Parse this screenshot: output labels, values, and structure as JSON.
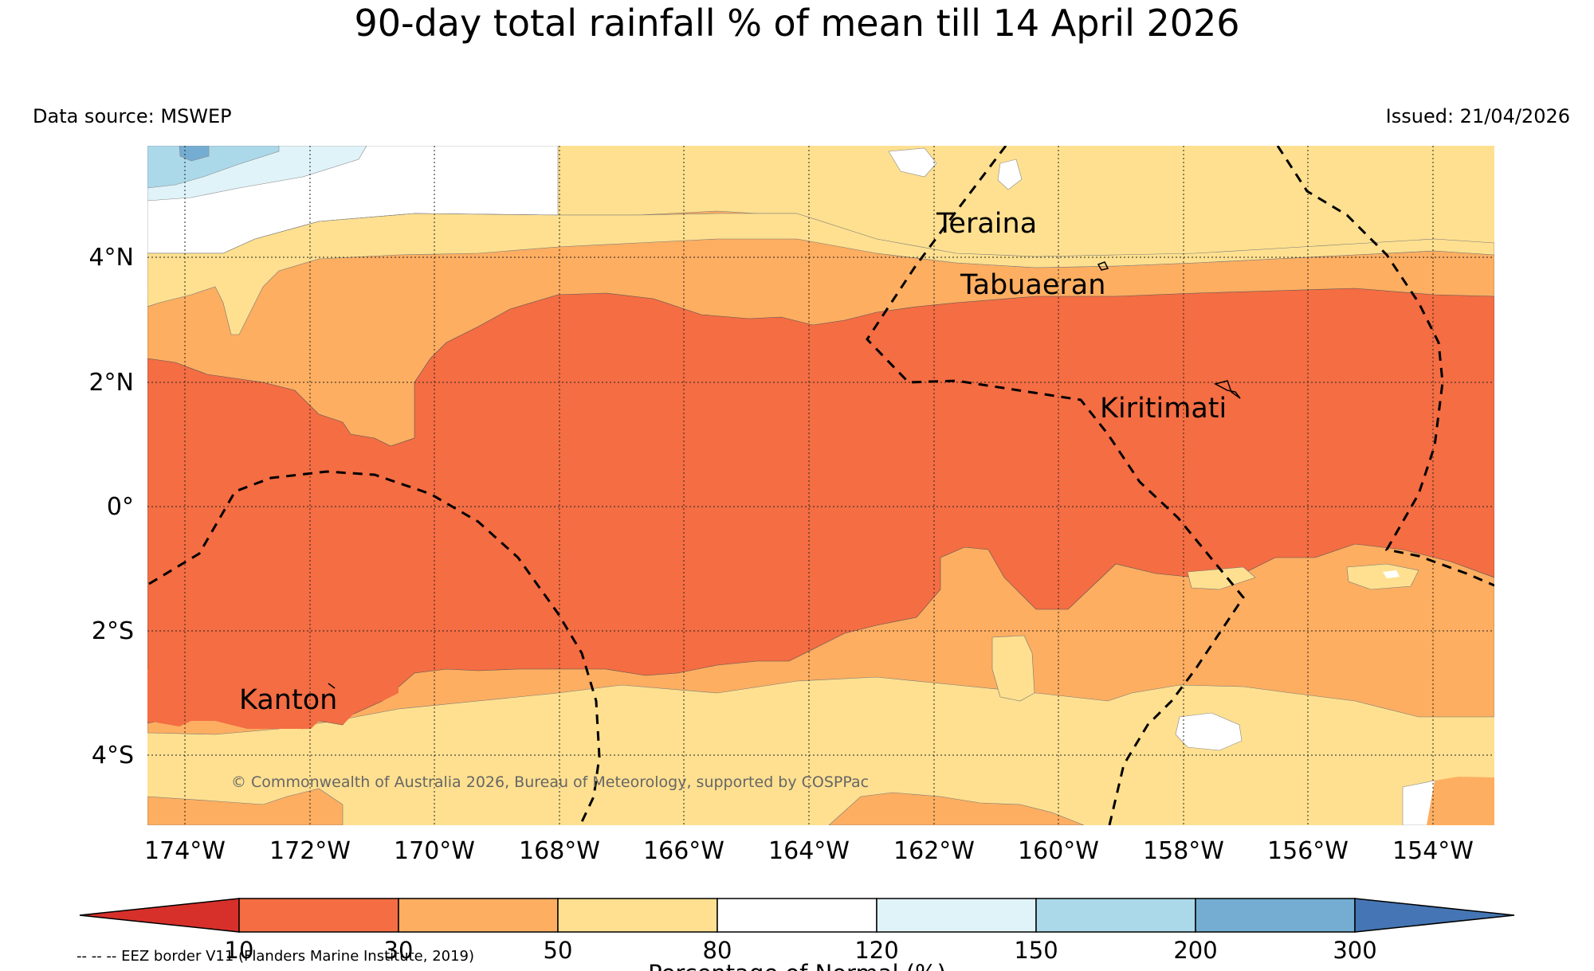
{
  "title": "90-day total rainfall % of mean till 14 April 2026",
  "data_source": "Data source: MSWEP",
  "issued": "Issued: 21/04/2026",
  "longitude_labels": [
    "174°W",
    "172°W",
    "170°W",
    "168°W",
    "166°W",
    "164°W",
    "162°W",
    "160°W",
    "158°W",
    "156°W",
    "154°W"
  ],
  "latitude_labels": [
    "4°N",
    "2°N",
    "0°",
    "2°S",
    "4°S"
  ],
  "places": {
    "teraina": "Teraina",
    "tabuaeran": "Tabuaeran",
    "kiritimati": "Kiritimati",
    "kanton": "Kanton"
  },
  "copyright": "© Commonwealth of Australia 2026, Bureau of Meteorology, supported by COSPPac",
  "colorbar": {
    "ticks": [
      "10",
      "30",
      "50",
      "80",
      "120",
      "150",
      "200",
      "300"
    ],
    "title": "Percentage of Normal (%)",
    "colors": [
      "#d7302b",
      "#f46d43",
      "#fdae61",
      "#fee090",
      "#ffffff",
      "#e0f3f8",
      "#abd9e9",
      "#74add1",
      "#4575b4"
    ]
  },
  "eez_note": "-- -- -- EEZ border V11 (Flanders Marine Institute, 2019)"
}
